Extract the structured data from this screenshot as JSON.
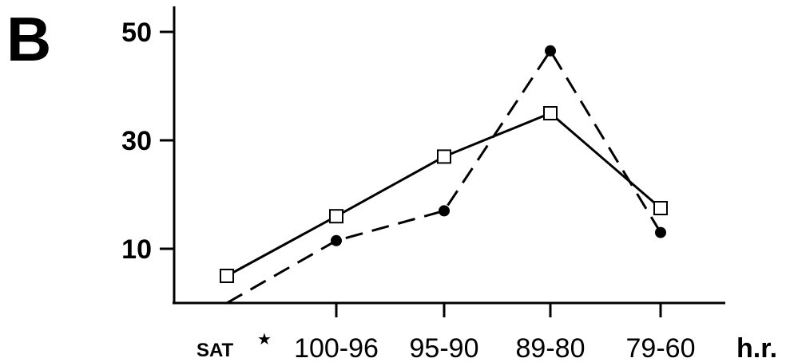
{
  "panel_label": "B",
  "chart_data": {
    "type": "line",
    "categories": [
      "SAT",
      "100-96",
      "95-90",
      "89-80",
      "79-60"
    ],
    "category_marker": "★",
    "xlabel": "h.r.",
    "ylabel": "",
    "y_ticks": [
      10,
      30,
      50
    ],
    "ylim": [
      0,
      55
    ],
    "grid": false,
    "series": [
      {
        "style": "solid",
        "marker": "open-square",
        "color": "#000000",
        "values": [
          5,
          16,
          27,
          35,
          17.5
        ]
      },
      {
        "style": "dashed",
        "marker": "filled-circle",
        "color": "#000000",
        "values": [
          0,
          11.5,
          17,
          46.5,
          13
        ]
      }
    ]
  }
}
